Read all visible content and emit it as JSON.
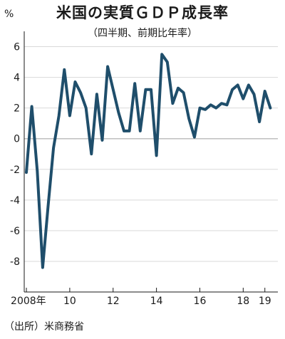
{
  "header": {
    "title": "米国の実質ＧＤＰ成長率",
    "subtitle": "（四半期、前期比年率）",
    "unit": "%"
  },
  "footer": {
    "source": "（出所）米商務省"
  },
  "colors": {
    "line": "#1f4e6b",
    "axis": "#1a1a1a",
    "grid": "#d9d9d9",
    "zero": "#bfbfbf"
  },
  "chart_data": {
    "type": "line",
    "title": "米国の実質ＧＤＰ成長率",
    "subtitle": "（四半期、前期比年率）",
    "ylabel": "%",
    "xlabel": "",
    "ylim": [
      -10,
      7
    ],
    "xlim": [
      2007.9,
      2019.6
    ],
    "grid": true,
    "y_ticks": [
      6,
      4,
      2,
      0,
      -2,
      -4,
      -6,
      -8
    ],
    "y_tick_labels": [
      "6",
      "4",
      "2",
      "0",
      "-2",
      "-4",
      "-6",
      "-8"
    ],
    "x_ticks": [
      2008,
      2010,
      2012,
      2014,
      2016,
      2018,
      2019
    ],
    "x_tick_labels": [
      "2008年",
      "10",
      "12",
      "14",
      "16",
      "18",
      "19"
    ],
    "series": [
      {
        "x": [
          2008.0,
          2008.25,
          2008.5,
          2008.75,
          2009.0,
          2009.25,
          2009.5,
          2009.75,
          2010.0,
          2010.25,
          2010.5,
          2010.75,
          2011.0,
          2011.25,
          2011.5,
          2011.75,
          2012.0,
          2012.25,
          2012.5,
          2012.75,
          2013.0,
          2013.25,
          2013.5,
          2013.75,
          2014.0,
          2014.25,
          2014.5,
          2014.75,
          2015.0,
          2015.25,
          2015.5,
          2015.75,
          2016.0,
          2016.25,
          2016.5,
          2016.75,
          2017.0,
          2017.25,
          2017.5,
          2017.75,
          2018.0,
          2018.25,
          2018.5,
          2018.75,
          2019.0,
          2019.25
        ],
        "values": [
          -2.2,
          2.1,
          -2.1,
          -8.4,
          -4.4,
          -0.6,
          1.5,
          4.5,
          1.5,
          3.7,
          3.0,
          2.0,
          -1.0,
          2.9,
          -0.1,
          4.7,
          3.2,
          1.7,
          0.5,
          0.5,
          3.6,
          0.5,
          3.2,
          3.2,
          -1.1,
          5.5,
          5.0,
          2.3,
          3.3,
          3.0,
          1.3,
          0.1,
          2.0,
          1.9,
          2.2,
          2.0,
          2.3,
          2.2,
          3.2,
          3.5,
          2.6,
          3.5,
          2.9,
          1.1,
          3.1,
          2.0
        ]
      }
    ]
  }
}
